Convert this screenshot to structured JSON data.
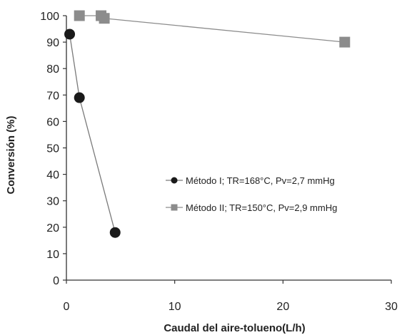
{
  "chart_data": {
    "type": "scatter",
    "title": "",
    "xlabel": "Caudal del aire-tolueno(L/h)",
    "ylabel": "Conversión (%)",
    "xlim": [
      0,
      30
    ],
    "ylim": [
      0,
      100
    ],
    "xticks": [
      0,
      10,
      20,
      30
    ],
    "yticks": [
      0,
      10,
      20,
      30,
      40,
      50,
      60,
      70,
      80,
      90,
      100
    ],
    "grid": false,
    "legend_position": "center-right",
    "series": [
      {
        "name": "Método I; TR=168°C, Pv=2,7 mmHg",
        "marker": "circle",
        "color": "#1a1a1a",
        "line_color": "#7a7a7a",
        "points": [
          {
            "x": 0.3,
            "y": 93
          },
          {
            "x": 1.2,
            "y": 69
          },
          {
            "x": 4.5,
            "y": 18
          }
        ]
      },
      {
        "name": "Método II; TR=150°C, Pv=2,9 mmHg",
        "marker": "square",
        "color": "#8c8c8c",
        "line_color": "#8c8c8c",
        "points": [
          {
            "x": 1.2,
            "y": 100
          },
          {
            "x": 3.2,
            "y": 100
          },
          {
            "x": 3.5,
            "y": 99
          },
          {
            "x": 25.7,
            "y": 90
          }
        ]
      }
    ]
  }
}
